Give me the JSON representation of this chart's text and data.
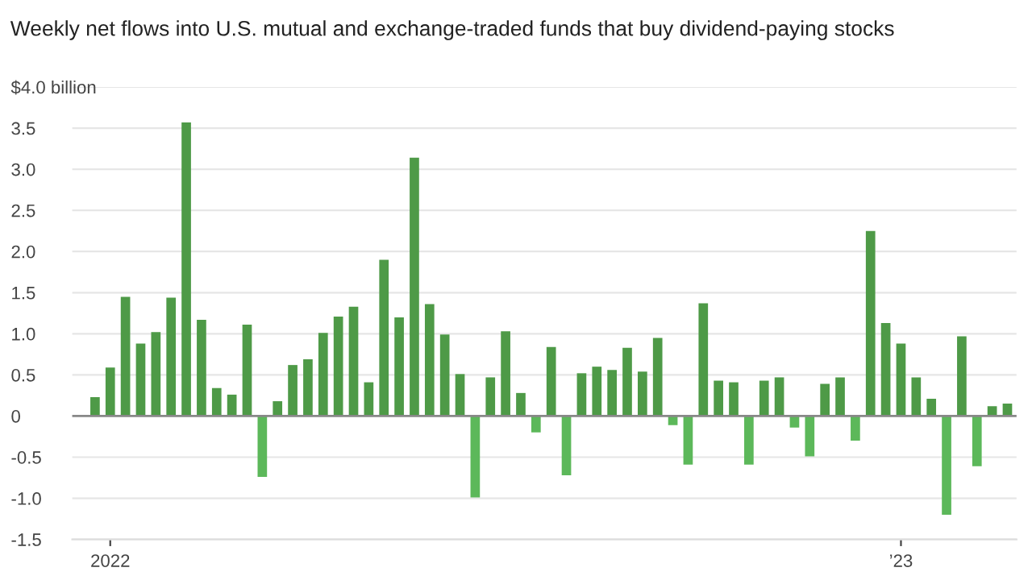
{
  "chart_data": {
    "type": "bar",
    "title": "Weekly net flows into U.S. mutual and exchange-traded funds that buy dividend-paying stocks",
    "categories": [
      null,
      "2022",
      null,
      null,
      null,
      null,
      null,
      null,
      null,
      null,
      null,
      null,
      null,
      null,
      null,
      null,
      null,
      null,
      null,
      null,
      null,
      null,
      null,
      null,
      null,
      null,
      null,
      null,
      null,
      null,
      null,
      null,
      null,
      null,
      null,
      null,
      null,
      null,
      null,
      null,
      null,
      null,
      null,
      null,
      null,
      null,
      null,
      null,
      null,
      null,
      null,
      null,
      null,
      "’23",
      null,
      null,
      null,
      null,
      null,
      null,
      null
    ],
    "values": [
      0.23,
      0.59,
      1.45,
      0.88,
      1.02,
      1.44,
      3.57,
      1.17,
      0.34,
      0.26,
      1.11,
      -0.74,
      0.18,
      0.62,
      0.69,
      1.01,
      1.21,
      1.33,
      0.41,
      1.9,
      1.2,
      3.14,
      1.36,
      0.99,
      0.51,
      -0.99,
      0.47,
      1.03,
      0.28,
      -0.2,
      0.84,
      -0.72,
      0.52,
      0.6,
      0.56,
      0.83,
      0.54,
      0.95,
      -0.11,
      -0.59,
      1.37,
      0.43,
      0.41,
      -0.59,
      0.43,
      0.47,
      -0.14,
      -0.49,
      0.39,
      0.47,
      -0.3,
      2.25,
      1.13,
      0.88,
      0.47,
      0.21,
      -1.2,
      0.97,
      -0.61,
      0.12,
      0.15
    ],
    "colors": [
      "#4e9a47",
      "#4e9a47",
      "#4e9a47",
      "#4e9a47",
      "#4e9a47",
      "#4e9a47",
      "#4e9a47",
      "#4e9a47",
      "#4e9a47",
      "#4e9a47",
      "#4e9a47",
      "#5cb85a",
      "#4e9a47",
      "#4e9a47",
      "#4e9a47",
      "#4e9a47",
      "#4e9a47",
      "#4e9a47",
      "#4e9a47",
      "#4e9a47",
      "#4e9a47",
      "#4e9a47",
      "#4e9a47",
      "#4e9a47",
      "#4e9a47",
      "#5cb85a",
      "#4e9a47",
      "#4e9a47",
      "#4e9a47",
      "#5cb85a",
      "#4e9a47",
      "#5cb85a",
      "#4e9a47",
      "#4e9a47",
      "#4e9a47",
      "#4e9a47",
      "#4e9a47",
      "#4e9a47",
      "#5cb85a",
      "#5cb85a",
      "#4e9a47",
      "#4e9a47",
      "#4e9a47",
      "#5cb85a",
      "#4e9a47",
      "#4e9a47",
      "#5cb85a",
      "#5cb85a",
      "#4e9a47",
      "#4e9a47",
      "#5cb85a",
      "#4e9a47",
      "#4e9a47",
      "#4e9a47",
      "#4e9a47",
      "#4e9a47",
      "#5cb85a",
      "#4e9a47",
      "#5cb85a",
      "#4e9a47",
      "#4e9a47"
    ],
    "ylim": [
      -1.5,
      4.0
    ],
    "yticks": [
      {
        "value": -1.5,
        "label": "-1.5"
      },
      {
        "value": -1.0,
        "label": "-1.0"
      },
      {
        "value": -0.5,
        "label": "-0.5"
      },
      0,
      {
        "value": 0.5,
        "label": "0.5"
      },
      {
        "value": 1.0,
        "label": "1.0"
      },
      {
        "value": 1.5,
        "label": "1.5"
      },
      {
        "value": 2.0,
        "label": "2.0"
      },
      {
        "value": 2.5,
        "label": "2.5"
      },
      {
        "value": 3.0,
        "label": "3.0"
      },
      {
        "value": 3.5,
        "label": "3.5"
      },
      {
        "value": 4.0,
        "label": "$4.0 billion"
      }
    ],
    "grid": "y"
  }
}
